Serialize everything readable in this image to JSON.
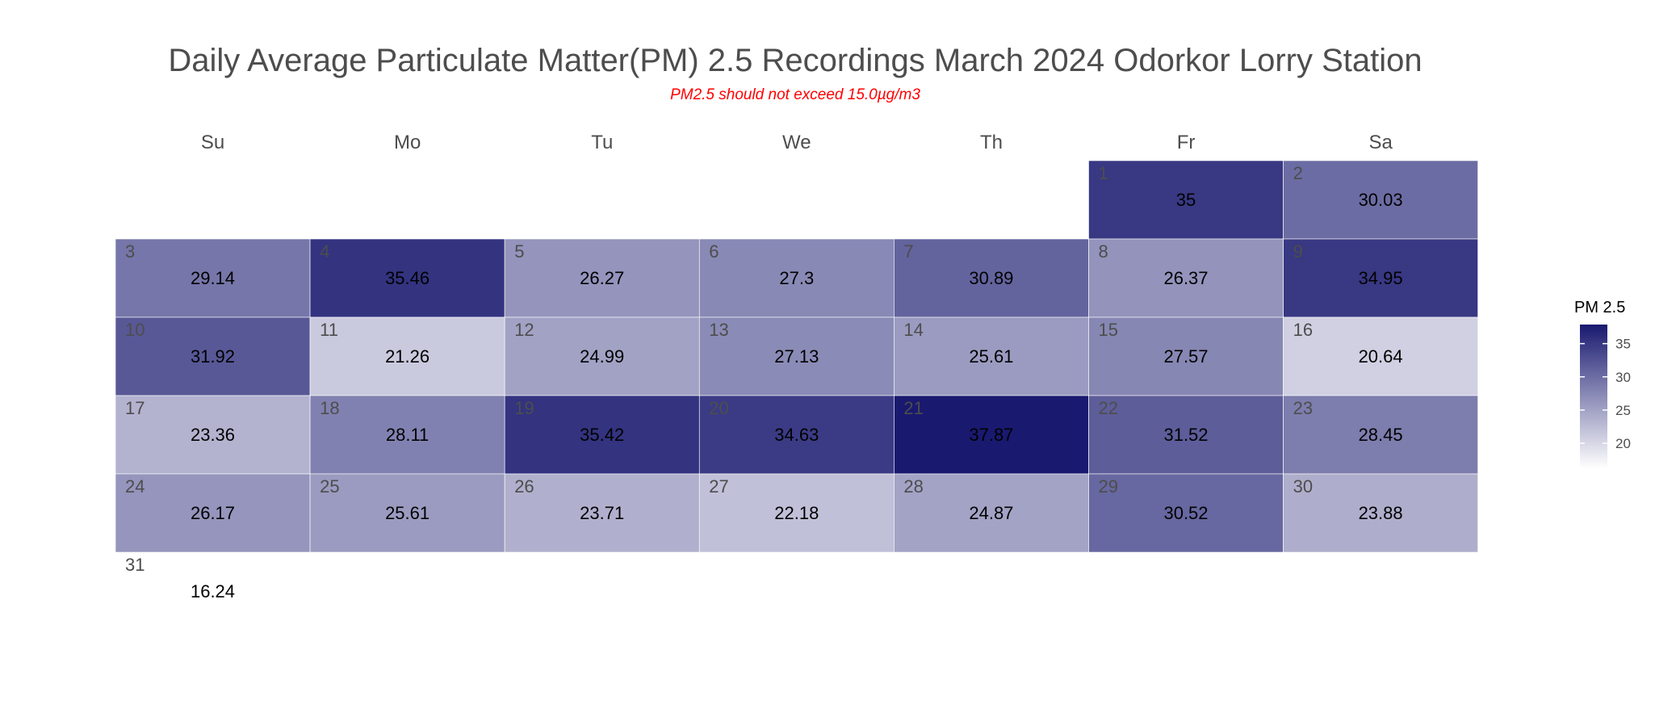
{
  "chart_data": {
    "type": "heatmap",
    "title": "Daily Average Particulate Matter(PM) 2.5 Recordings March 2024 Odorkor Lorry Station",
    "subtitle": "PM2.5 should not exceed 15.0µg/m3",
    "weekdays": [
      "Su",
      "Mo",
      "Tu",
      "We",
      "Th",
      "Fr",
      "Sa"
    ],
    "first_weekday_index": 5,
    "days": [
      1,
      2,
      3,
      4,
      5,
      6,
      7,
      8,
      9,
      10,
      11,
      12,
      13,
      14,
      15,
      16,
      17,
      18,
      19,
      20,
      21,
      22,
      23,
      24,
      25,
      26,
      27,
      28,
      29,
      30,
      31
    ],
    "values": [
      35,
      30.03,
      29.14,
      35.46,
      26.27,
      27.3,
      30.89,
      26.37,
      34.95,
      31.92,
      21.26,
      24.99,
      27.13,
      25.61,
      27.57,
      20.64,
      23.36,
      28.11,
      35.42,
      34.63,
      37.87,
      31.52,
      28.45,
      26.17,
      25.61,
      23.71,
      22.18,
      24.87,
      30.52,
      23.88,
      16.24
    ],
    "colored_days_through": 30,
    "legend": {
      "title": "PM 2.5",
      "ticks": [
        20,
        25,
        30,
        35
      ],
      "range": [
        16.24,
        37.87
      ],
      "placement": "right"
    },
    "colors": {
      "low": "#ffffff",
      "high": "#191970",
      "title": "#4d4d4d",
      "subtitle": "#ff0000",
      "value_text": "#000000",
      "day_text": "#4d4d4d"
    }
  }
}
